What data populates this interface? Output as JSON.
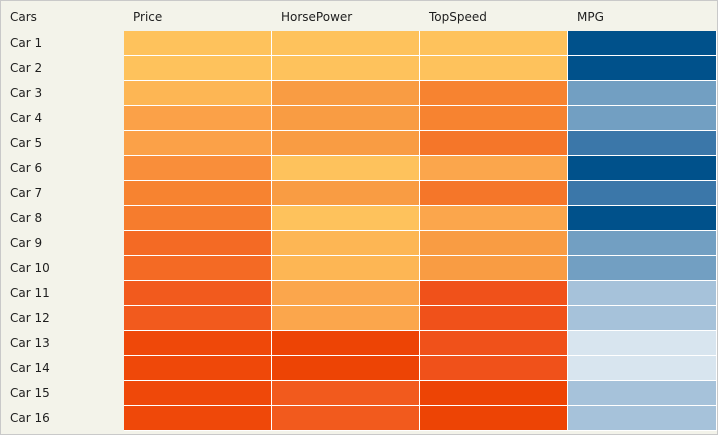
{
  "chart_data": {
    "type": "heatmap",
    "corner_label": "Cars",
    "columns": [
      "Price",
      "HorsePower",
      "TopSpeed",
      "MPG"
    ],
    "rows": [
      "Car 1",
      "Car 2",
      "Car 3",
      "Car 4",
      "Car 5",
      "Car 6",
      "Car 7",
      "Car 8",
      "Car 9",
      "Car 10",
      "Car 11",
      "Car 12",
      "Car 13",
      "Car 14",
      "Car 15",
      "Car 16"
    ],
    "colors": [
      [
        "#fec25c",
        "#fec25c",
        "#fec25c",
        "#00518b"
      ],
      [
        "#fec25c",
        "#fec25c",
        "#fec25c",
        "#00518b"
      ],
      [
        "#fdb654",
        "#f99c43",
        "#f78330",
        "#729fc2"
      ],
      [
        "#fba148",
        "#f99c43",
        "#f78330",
        "#729fc2"
      ],
      [
        "#fba148",
        "#f99c43",
        "#f57629",
        "#3b77a9"
      ],
      [
        "#f98e3a",
        "#fec25c",
        "#fba64c",
        "#00518b"
      ],
      [
        "#f78330",
        "#f99c43",
        "#f57629",
        "#3b77a9"
      ],
      [
        "#f67c2d",
        "#fec25c",
        "#fba64c",
        "#00518b"
      ],
      [
        "#f46a24",
        "#fdb654",
        "#f99c43",
        "#729fc2"
      ],
      [
        "#f46a24",
        "#fdb654",
        "#f99c43",
        "#729fc2"
      ],
      [
        "#f25a1d",
        "#fba64c",
        "#f0511a",
        "#a6c2da"
      ],
      [
        "#f25a1d",
        "#fba64c",
        "#f0511a",
        "#a6c2da"
      ],
      [
        "#ef4809",
        "#ed4405",
        "#f0511a",
        "#d8e5ef"
      ],
      [
        "#ef4809",
        "#ed4405",
        "#f0511a",
        "#d8e5ef"
      ],
      [
        "#ef4809",
        "#f25a1d",
        "#ed4405",
        "#a6c2da"
      ],
      [
        "#ef4809",
        "#f25a1d",
        "#ed4405",
        "#a6c2da"
      ]
    ]
  }
}
